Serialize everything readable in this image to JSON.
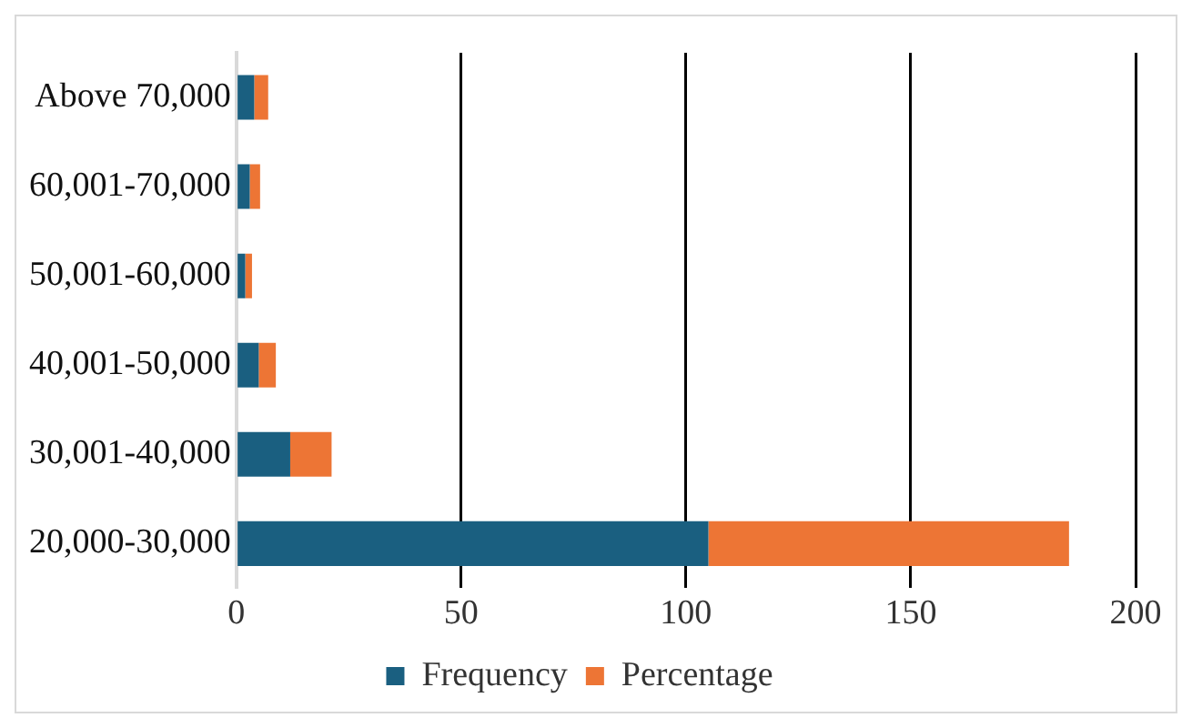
{
  "chart_data": {
    "type": "bar",
    "orientation": "horizontal",
    "stacked": true,
    "categories": [
      "Above 70,000",
      "60,001-70,000",
      "50,001-60,000",
      "40,001-50,000",
      "30,001-40,000",
      "20,000-30,000"
    ],
    "series": [
      {
        "name": "Frequency",
        "color": "#1a5f80",
        "values": [
          4,
          3,
          2,
          5,
          12,
          105
        ]
      },
      {
        "name": "Percentage",
        "color": "#ed7535",
        "values": [
          3.1,
          2.3,
          1.5,
          3.8,
          9.2,
          80.2
        ]
      }
    ],
    "xlim": [
      0,
      200
    ],
    "xticks": [
      0,
      50,
      100,
      150,
      200
    ],
    "grid": "x",
    "legend": "bottom"
  }
}
